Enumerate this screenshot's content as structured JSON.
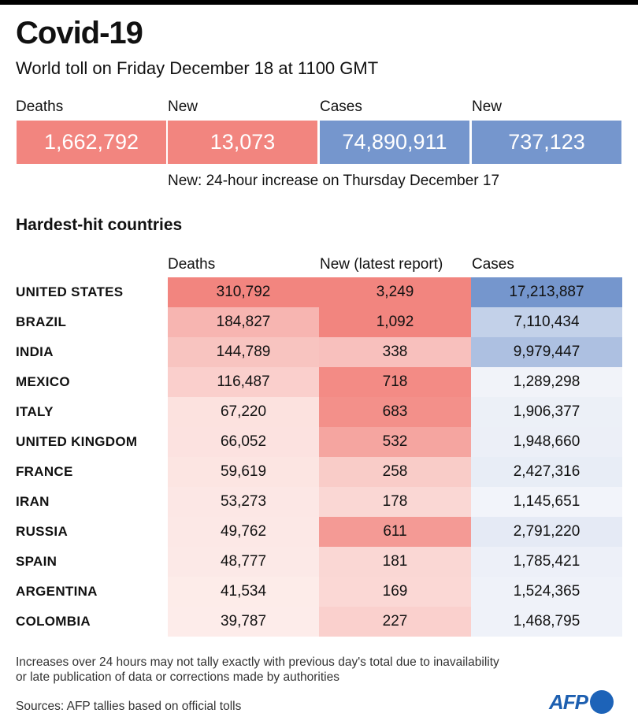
{
  "title": "Covid-19",
  "subtitle": "World toll on Friday December 18 at 1100 GMT",
  "key_figures": [
    {
      "label": "Deaths",
      "value": "1,662,792",
      "color": "#f2857f"
    },
    {
      "label": "New",
      "value": "13,073",
      "color": "#f2857f"
    },
    {
      "label": "Cases",
      "value": "74,890,911",
      "color": "#7596cd"
    },
    {
      "label": "New",
      "value": "737,123",
      "color": "#7596cd"
    }
  ],
  "note": "New: 24-hour increase on Thursday December 17",
  "section_title": "Hardest-hit countries",
  "chart_data": {
    "type": "table",
    "title": "Hardest-hit countries",
    "columns": [
      "Deaths",
      "New (latest report)",
      "Cases"
    ],
    "rows": [
      {
        "country": "UNITED STATES",
        "deaths": 310792,
        "new": 3249,
        "cases": 17213887,
        "deaths_text": "310,792",
        "new_text": "3,249",
        "cases_text": "17,213,887"
      },
      {
        "country": "BRAZIL",
        "deaths": 184827,
        "new": 1092,
        "cases": 7110434,
        "deaths_text": "184,827",
        "new_text": "1,092",
        "cases_text": "7,110,434"
      },
      {
        "country": "INDIA",
        "deaths": 144789,
        "new": 338,
        "cases": 9979447,
        "deaths_text": "144,789",
        "new_text": "338",
        "cases_text": "9,979,447"
      },
      {
        "country": "MEXICO",
        "deaths": 116487,
        "new": 718,
        "cases": 1289298,
        "deaths_text": "116,487",
        "new_text": "718",
        "cases_text": "1,289,298"
      },
      {
        "country": "ITALY",
        "deaths": 67220,
        "new": 683,
        "cases": 1906377,
        "deaths_text": "67,220",
        "new_text": "683",
        "cases_text": "1,906,377"
      },
      {
        "country": "UNITED KINGDOM",
        "deaths": 66052,
        "new": 532,
        "cases": 1948660,
        "deaths_text": "66,052",
        "new_text": "532",
        "cases_text": "1,948,660"
      },
      {
        "country": "FRANCE",
        "deaths": 59619,
        "new": 258,
        "cases": 2427316,
        "deaths_text": "59,619",
        "new_text": "258",
        "cases_text": "2,427,316"
      },
      {
        "country": "IRAN",
        "deaths": 53273,
        "new": 178,
        "cases": 1145651,
        "deaths_text": "53,273",
        "new_text": "178",
        "cases_text": "1,145,651"
      },
      {
        "country": "RUSSIA",
        "deaths": 49762,
        "new": 611,
        "cases": 2791220,
        "deaths_text": "49,762",
        "new_text": "611",
        "cases_text": "2,791,220"
      },
      {
        "country": "SPAIN",
        "deaths": 48777,
        "new": 181,
        "cases": 1785421,
        "deaths_text": "48,777",
        "new_text": "181",
        "cases_text": "1,785,421"
      },
      {
        "country": "ARGENTINA",
        "deaths": 41534,
        "new": 169,
        "cases": 1524365,
        "deaths_text": "41,534",
        "new_text": "169",
        "cases_text": "1,524,365"
      },
      {
        "country": "COLOMBIA",
        "deaths": 39787,
        "new": 227,
        "cases": 1468795,
        "deaths_text": "39,787",
        "new_text": "227",
        "cases_text": "1,468,795"
      }
    ]
  },
  "colors": {
    "red_max": "#f2857f",
    "red_min": "#fdf0ee",
    "blue_max": "#7596cd",
    "blue_min": "#f3f5fa"
  },
  "footnote_1": "Increases over 24 hours may not tally exactly with previous day's total due to inavailability",
  "footnote_2": "or late publication of data or corrections made by authorities",
  "sources": "Sources: AFP tallies based on official tolls",
  "logo": "AFP"
}
